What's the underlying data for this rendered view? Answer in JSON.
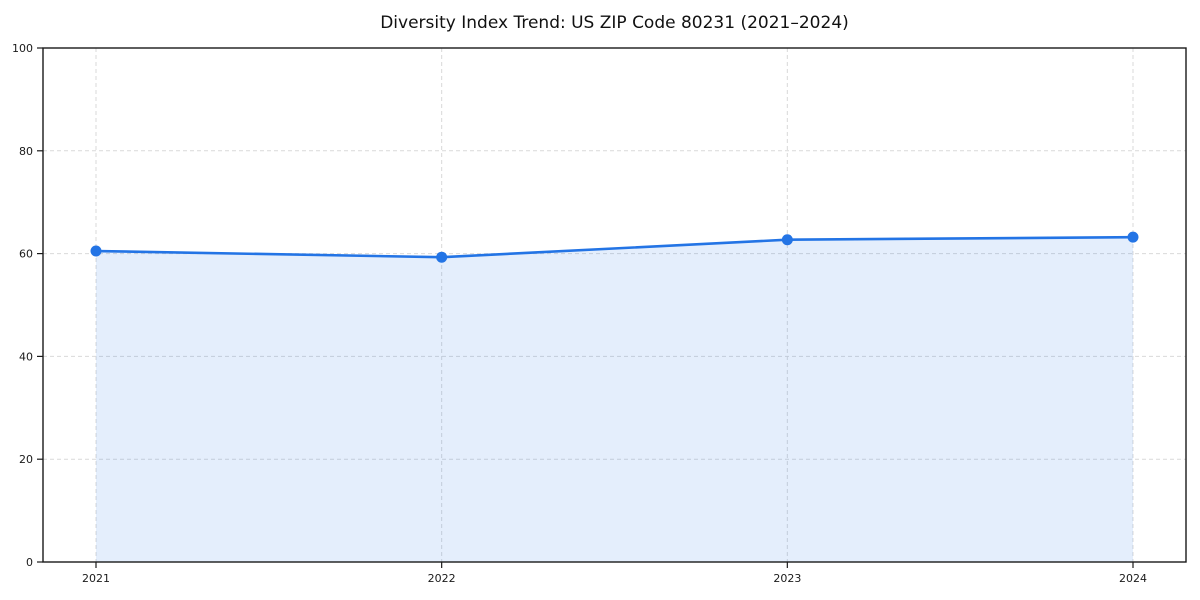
{
  "figure": {
    "title": "Diversity Index Trend: US ZIP Code 80231 (2021–2024)"
  },
  "chart_data": {
    "type": "line",
    "title": "Diversity Index Trend: US ZIP Code 80231 (2021–2024)",
    "categories": [
      "2021",
      "2022",
      "2023",
      "2024"
    ],
    "series": [
      {
        "name": "Diversity Index",
        "values": [
          60.5,
          59.3,
          62.7,
          63.2
        ]
      }
    ],
    "xlabel": "",
    "ylabel": "",
    "ylim": [
      0,
      100
    ],
    "yticks": [
      0,
      20,
      40,
      60,
      80,
      100
    ],
    "grid": true,
    "grid_style": "dashed",
    "legend": "none",
    "marker": "circle",
    "area_fill": true,
    "colors": {
      "line": "#2374e5",
      "fill": "#2374e5",
      "fill_opacity": 0.12,
      "grid": "#d9d9d9",
      "axis": "#1a1a1a",
      "tick_label": "#1a1a1a",
      "title": "#111111",
      "background": "#ffffff"
    }
  }
}
